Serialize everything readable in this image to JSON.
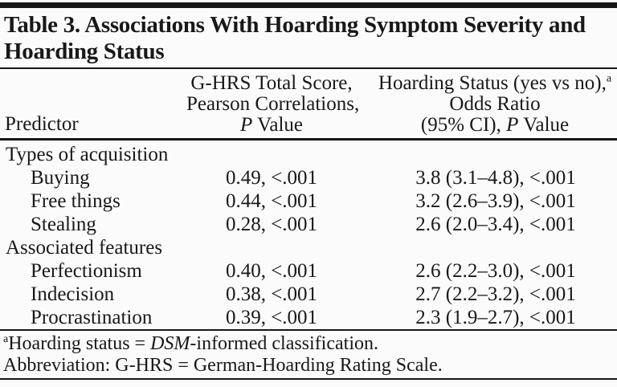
{
  "title": {
    "line1": "Table 3. Associations With Hoarding Symptom Severity and",
    "line2": "Hoarding Status"
  },
  "columns": {
    "predictor": "Predictor",
    "ghrs": {
      "line1": "G-HRS Total Score,",
      "line2": "Pearson Correlations,",
      "p_italic": "P",
      "p_rest": " Value"
    },
    "odds": {
      "line1": "Hoarding Status (yes vs no),",
      "line1_sup": "a",
      "line2": "Odds Ratio",
      "line3_pre": "(95% CI), ",
      "p_italic": "P",
      "p_rest": " Value"
    }
  },
  "rows": [
    {
      "predictor": "Types of acquisition",
      "ghrs": "",
      "odds": ""
    },
    {
      "predictor": "Buying",
      "ghrs": "0.49, <.001",
      "odds": "3.8 (3.1–4.8), <.001"
    },
    {
      "predictor": "Free things",
      "ghrs": "0.44, <.001",
      "odds": "3.2 (2.6–3.9), <.001"
    },
    {
      "predictor": "Stealing",
      "ghrs": "0.28, <.001",
      "odds": "2.6 (2.0–3.4), <.001"
    },
    {
      "predictor": "Associated features",
      "ghrs": "",
      "odds": ""
    },
    {
      "predictor": "Perfectionism",
      "ghrs": "0.40, <.001",
      "odds": "2.6 (2.2–3.0), <.001"
    },
    {
      "predictor": "Indecision",
      "ghrs": "0.38, <.001",
      "odds": "2.7 (2.2–3.2), <.001"
    },
    {
      "predictor": "Procrastination",
      "ghrs": "0.39, <.001",
      "odds": "2.3 (1.9–2.7), <.001"
    }
  ],
  "footnotes": {
    "a": {
      "sup": "a",
      "pre": "Hoarding status = ",
      "italic": "DSM",
      "post": "-informed classification."
    },
    "abbreviation": "Abbreviation: G-HRS = German-Hoarding Rating Scale."
  },
  "colors": {
    "text": "#181818",
    "rule": "#161616",
    "background": "#fbfbfb"
  }
}
